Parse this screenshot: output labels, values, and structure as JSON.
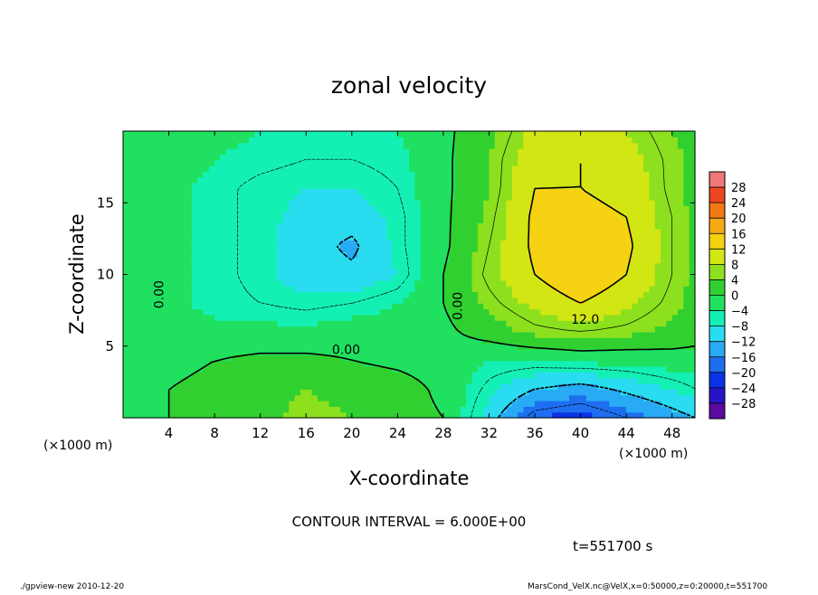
{
  "page": {
    "title": "zonal velocity",
    "contour_interval_label": "CONTOUR INTERVAL = 6.000E+00",
    "time_label": "t=551700 s",
    "footer_left": "./gpview-new   2010-12-20",
    "footer_right": "MarsCond_VelX.nc@VelX,x=0:50000,z=0:20000,t=551700"
  },
  "chart_data": {
    "type": "heatmap",
    "title": "zonal velocity",
    "xlabel": "X-coordinate",
    "ylabel": "Z-coordinate",
    "x_unit_left": "(×1000 m)",
    "x_unit_right": "(×1000 m)",
    "xlim": [
      0,
      50
    ],
    "ylim": [
      0,
      20
    ],
    "x_ticks": [
      4,
      8,
      12,
      16,
      20,
      24,
      28,
      32,
      36,
      40,
      44,
      48
    ],
    "y_ticks": [
      5,
      10,
      15
    ],
    "contour_labels": [
      "0.00",
      "0.00",
      "0.00",
      "12.0"
    ],
    "colorbar": {
      "levels": [
        -32,
        -28,
        -24,
        -20,
        -16,
        -12,
        -8,
        -4,
        0,
        4,
        8,
        12,
        16,
        20,
        24,
        28,
        32
      ],
      "tick_labels": [
        "28",
        "24",
        "20",
        "16",
        "12",
        "8",
        "4",
        "0",
        "−4",
        "−8",
        "−12",
        "−16",
        "−20",
        "−24",
        "−28"
      ],
      "colors": [
        "#5a0aa0",
        "#2814c8",
        "#0a32e6",
        "#1e6ef0",
        "#28aaf5",
        "#2adcf0",
        "#14f0b4",
        "#20e060",
        "#30d030",
        "#8ce01e",
        "#d2e614",
        "#f5d212",
        "#f5aa14",
        "#f27814",
        "#ec4620",
        "#f07878"
      ]
    },
    "field_grid": {
      "x": [
        0,
        4,
        8,
        12,
        16,
        20,
        24,
        28,
        32,
        36,
        40,
        44,
        48,
        50
      ],
      "z": [
        0,
        2,
        4,
        6,
        8,
        10,
        12,
        14,
        16,
        18,
        20
      ],
      "values": [
        [
          -1,
          0,
          1,
          3,
          5,
          4,
          2,
          0,
          -10,
          -20,
          -22,
          -18,
          -14,
          -12
        ],
        [
          -2,
          0,
          1,
          3,
          4,
          3,
          2,
          -1,
          -7,
          -12,
          -14,
          -11,
          -8,
          -6
        ],
        [
          -2,
          -1,
          0,
          1,
          1,
          0,
          -1,
          -2,
          -4,
          -4,
          -3,
          -3,
          -2,
          -2
        ],
        [
          -1,
          -3,
          -3,
          -3,
          -3,
          -2,
          -2,
          -1,
          2,
          5,
          6,
          5,
          3,
          2
        ],
        [
          -1,
          -3,
          -5,
          -6,
          -7,
          -6,
          -4,
          0,
          5,
          9,
          12,
          9,
          5,
          3
        ],
        [
          -1,
          -3,
          -5,
          -7,
          -10,
          -11,
          -8,
          0,
          7,
          12,
          16,
          12,
          6,
          3
        ],
        [
          -1,
          -3,
          -5,
          -7,
          -10,
          -13,
          -7,
          -1,
          6,
          13,
          14,
          13,
          6,
          3
        ],
        [
          -1,
          -3,
          -5,
          -7,
          -9,
          -10,
          -7,
          -1,
          5,
          13,
          13,
          12,
          6,
          3
        ],
        [
          -1,
          -3,
          -5,
          -7,
          -8,
          -8,
          -6,
          -1,
          4,
          12,
          12,
          11,
          5,
          3
        ],
        [
          -1,
          -2,
          -4,
          -5,
          -6,
          -6,
          -5,
          -1,
          4,
          11,
          12,
          10,
          5,
          3
        ],
        [
          -1,
          -2,
          -3,
          -4,
          -5,
          -5,
          -4,
          -1,
          3,
          9,
          10,
          8,
          4,
          3
        ]
      ]
    }
  }
}
